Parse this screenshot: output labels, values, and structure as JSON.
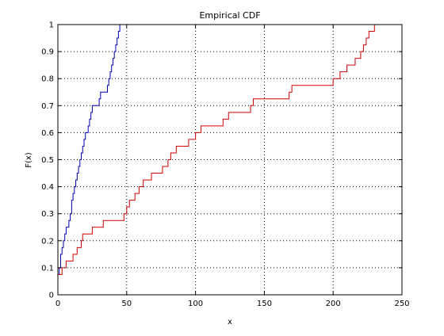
{
  "chart_data": {
    "type": "line",
    "title": "Empirical CDF",
    "xlabel": "x",
    "ylabel": "F(x)",
    "xlim": [
      0,
      250
    ],
    "ylim": [
      0,
      1
    ],
    "xticks": [
      0,
      50,
      100,
      150,
      200,
      250
    ],
    "yticks": [
      0,
      0.1,
      0.2,
      0.3,
      0.4,
      0.5,
      0.6,
      0.7,
      0.8,
      0.9,
      1
    ],
    "xtick_labels": [
      "0",
      "50",
      "100",
      "150",
      "200",
      "250"
    ],
    "ytick_labels": [
      "0",
      "0.1",
      "0.2",
      "0.3",
      "0.4",
      "0.5",
      "0.6",
      "0.7",
      "0.8",
      "0.9",
      "1"
    ],
    "grid": true,
    "grid_style": "dotted",
    "legend": false,
    "series": [
      {
        "color": "#0000b0",
        "step": true,
        "x": [
          0,
          1,
          2,
          3,
          4,
          5,
          6,
          8,
          9,
          10,
          11,
          12,
          13,
          14,
          15,
          16,
          17,
          18,
          19,
          20,
          21,
          22,
          23,
          24,
          25,
          26,
          27,
          28,
          30,
          31,
          32,
          33,
          34,
          36,
          37,
          38,
          39,
          40,
          41,
          42,
          43,
          44,
          45,
          46,
          47
        ],
        "y": [
          0.075,
          0.1,
          0.15,
          0.175,
          0.2,
          0.225,
          0.25,
          0.275,
          0.3,
          0.35,
          0.375,
          0.4,
          0.425,
          0.45,
          0.475,
          0.5,
          0.525,
          0.55,
          0.575,
          0.6,
          0.6,
          0.625,
          0.65,
          0.675,
          0.7,
          0.7,
          0.7,
          0.7,
          0.725,
          0.75,
          0.75,
          0.75,
          0.75,
          0.775,
          0.8,
          0.825,
          0.85,
          0.875,
          0.9,
          0.925,
          0.95,
          0.975,
          1.0,
          1.0,
          1.0
        ]
      },
      {
        "color": "#d00000",
        "step": true,
        "x": [
          0,
          3,
          6,
          11,
          14,
          16,
          17,
          18,
          25,
          33,
          48,
          50,
          51,
          52,
          54,
          56,
          57,
          59,
          61,
          62,
          65,
          68,
          69,
          70,
          72,
          76,
          78,
          80,
          82,
          84,
          86,
          89,
          90,
          95,
          97,
          100,
          102,
          104,
          107,
          110,
          112,
          115,
          118,
          120,
          122,
          124,
          127,
          130,
          134,
          138,
          140,
          142,
          145,
          150,
          155,
          160,
          165,
          168,
          170,
          175,
          180,
          185,
          190,
          195,
          200,
          203,
          205,
          208,
          210,
          213,
          216,
          218,
          220,
          222,
          224,
          226,
          228,
          230,
          234,
          236
        ],
        "y": [
          0.075,
          0.1,
          0.125,
          0.15,
          0.175,
          0.175,
          0.2,
          0.225,
          0.25,
          0.275,
          0.3,
          0.325,
          0.325,
          0.35,
          0.35,
          0.375,
          0.375,
          0.4,
          0.4,
          0.425,
          0.425,
          0.45,
          0.45,
          0.45,
          0.45,
          0.475,
          0.475,
          0.5,
          0.525,
          0.525,
          0.55,
          0.55,
          0.55,
          0.575,
          0.575,
          0.6,
          0.6,
          0.625,
          0.625,
          0.625,
          0.625,
          0.625,
          0.625,
          0.65,
          0.65,
          0.675,
          0.675,
          0.675,
          0.675,
          0.675,
          0.7,
          0.725,
          0.725,
          0.725,
          0.725,
          0.725,
          0.725,
          0.75,
          0.775,
          0.775,
          0.775,
          0.775,
          0.775,
          0.775,
          0.8,
          0.8,
          0.825,
          0.825,
          0.85,
          0.85,
          0.875,
          0.875,
          0.9,
          0.925,
          0.95,
          0.975,
          0.975,
          1.0,
          1.0,
          1.0
        ]
      }
    ]
  }
}
